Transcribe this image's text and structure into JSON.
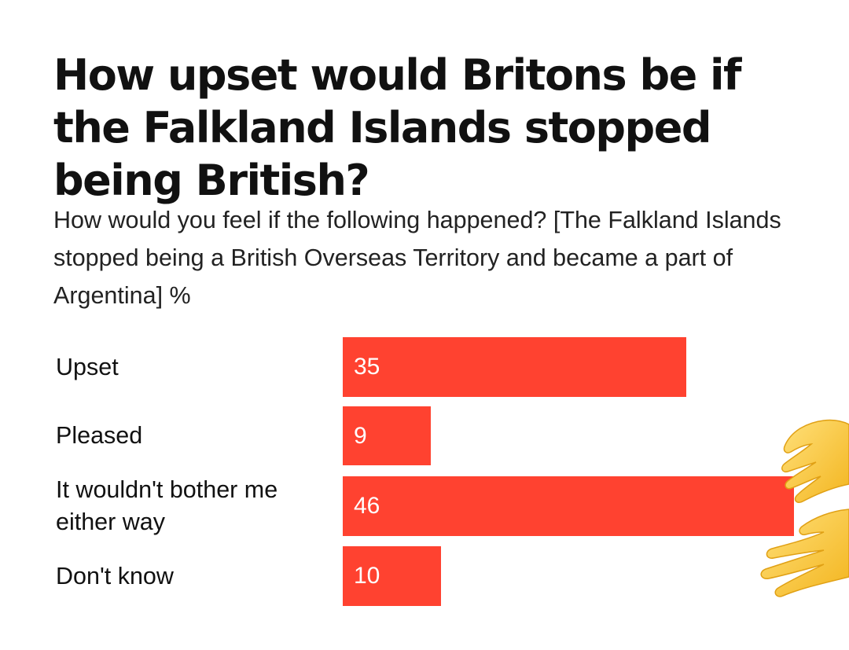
{
  "chart_data": {
    "type": "bar",
    "orientation": "horizontal",
    "title": "How upset would Britons be if the Falkland Islands stopped being British?",
    "subtitle": "How would you feel if the following happened? [The Falkland Islands stopped being a British Overseas Territory and became a part of Argentina] %",
    "categories": [
      "Upset",
      "Pleased",
      "It wouldn't bother me either way",
      "Don't know"
    ],
    "values": [
      35,
      9,
      46,
      10
    ],
    "xlim": [
      0,
      46
    ],
    "grid": false,
    "bar_color": "#ff4230"
  },
  "decoration": {
    "icon": "raised-hands-emoji-icon"
  }
}
